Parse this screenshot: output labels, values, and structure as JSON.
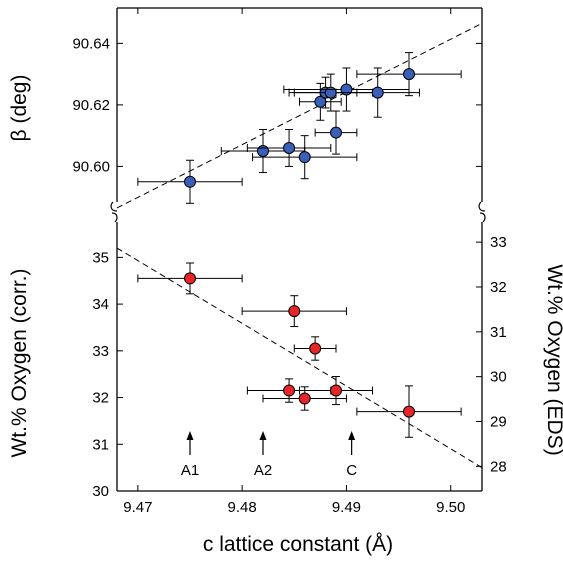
{
  "chart_data": [
    {
      "type": "scatter",
      "panel": "top",
      "xlabel": "c lattice constant (Å)",
      "ylabel": "β (deg)",
      "xlim": [
        9.468,
        9.503
      ],
      "ylim": [
        90.5855,
        90.6515
      ],
      "xticks": [
        9.47,
        9.48,
        9.49,
        9.5
      ],
      "xtick_labels": [
        "9.47",
        "9.48",
        "9.49",
        "9.50"
      ],
      "yticks": [
        90.6,
        90.62,
        90.64
      ],
      "ytick_labels": [
        "90.60",
        "90.62",
        "90.64"
      ],
      "grid": false,
      "marker_color": "#3a5fb8",
      "points": [
        {
          "x": 9.475,
          "y": 90.595,
          "xerr": 0.005,
          "yerr": 0.007
        },
        {
          "x": 9.482,
          "y": 90.605,
          "xerr": 0.004,
          "yerr": 0.007
        },
        {
          "x": 9.4845,
          "y": 90.606,
          "xerr": 0.004,
          "yerr": 0.006
        },
        {
          "x": 9.486,
          "y": 90.603,
          "xerr": 0.005,
          "yerr": 0.007
        },
        {
          "x": 9.4875,
          "y": 90.621,
          "xerr": 0.002,
          "yerr": 0.006
        },
        {
          "x": 9.488,
          "y": 90.624,
          "xerr": 0.003,
          "yerr": 0.005
        },
        {
          "x": 9.4885,
          "y": 90.624,
          "xerr": 0.004,
          "yerr": 0.006
        },
        {
          "x": 9.489,
          "y": 90.611,
          "xerr": 0.002,
          "yerr": 0.007
        },
        {
          "x": 9.49,
          "y": 90.625,
          "xerr": 0.006,
          "yerr": 0.007
        },
        {
          "x": 9.493,
          "y": 90.624,
          "xerr": 0.004,
          "yerr": 0.008
        },
        {
          "x": 9.496,
          "y": 90.63,
          "xerr": 0.005,
          "yerr": 0.007
        }
      ],
      "fit_line": {
        "x": [
          9.468,
          9.503
        ],
        "y": [
          90.5865,
          90.6465
        ],
        "style": "dashed"
      }
    },
    {
      "type": "scatter",
      "panel": "bottom",
      "xlabel": "c lattice constant (Å)",
      "ylabel": "Wt.% Oxygen (corr.)",
      "ylabel_right": "Wt.% Oxygen (EDS)",
      "xlim": [
        9.468,
        9.503
      ],
      "ylim": [
        30,
        35.95
      ],
      "ylim_right": [
        27.45,
        33.65
      ],
      "xticks": [
        9.47,
        9.48,
        9.49,
        9.5
      ],
      "xtick_labels": [
        "9.47",
        "9.48",
        "9.49",
        "9.50"
      ],
      "yticks": [
        30,
        31,
        32,
        33,
        34,
        35
      ],
      "ytick_labels": [
        "30",
        "31",
        "32",
        "33",
        "34",
        "35"
      ],
      "yticks_right": [
        28,
        29,
        30,
        31,
        32,
        33
      ],
      "ytick_labels_right": [
        "28",
        "29",
        "30",
        "31",
        "32",
        "33"
      ],
      "grid": false,
      "marker_color": "#e8262a",
      "points": [
        {
          "x": 9.475,
          "y": 34.55,
          "xerr": 0.005,
          "yerr": 0.33
        },
        {
          "x": 9.485,
          "y": 33.85,
          "xerr": 0.005,
          "yerr": 0.33
        },
        {
          "x": 9.487,
          "y": 33.05,
          "xerr": 0.002,
          "yerr": 0.25
        },
        {
          "x": 9.4845,
          "y": 32.15,
          "xerr": 0.004,
          "yerr": 0.25
        },
        {
          "x": 9.486,
          "y": 31.98,
          "xerr": 0.004,
          "yerr": 0.25
        },
        {
          "x": 9.489,
          "y": 32.15,
          "xerr": 0.0035,
          "yerr": 0.3
        },
        {
          "x": 9.496,
          "y": 31.7,
          "xerr": 0.005,
          "yerr": 0.55
        }
      ],
      "fit_line": {
        "x": [
          9.468,
          9.503
        ],
        "y": [
          35.2,
          30.5
        ],
        "style": "dashed"
      },
      "markers": [
        {
          "label": "A1",
          "x": 9.475
        },
        {
          "label": "A2",
          "x": 9.482
        },
        {
          "label": "C",
          "x": 9.4905
        }
      ]
    }
  ]
}
